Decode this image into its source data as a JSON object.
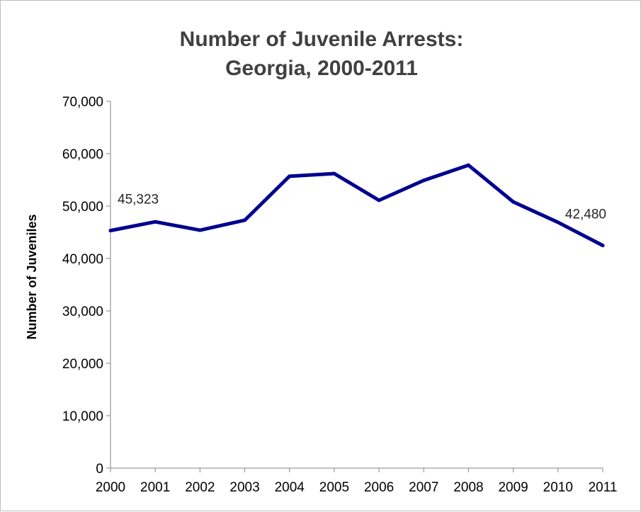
{
  "chart_data": {
    "type": "line",
    "title_lines": [
      "Number of Juvenile Arrests:",
      "Georgia, 2000-2011"
    ],
    "xlabel": "",
    "ylabel": "Number of Juveniles",
    "categories": [
      "2000",
      "2001",
      "2002",
      "2003",
      "2004",
      "2005",
      "2006",
      "2007",
      "2008",
      "2009",
      "2010",
      "2011"
    ],
    "series": [
      {
        "values": [
          45323,
          47000,
          45400,
          47300,
          55700,
          56200,
          51100,
          54900,
          57800,
          50800,
          46900,
          42480
        ],
        "color": "#000090"
      }
    ],
    "ylim": [
      0,
      70000
    ],
    "yticks": [
      0,
      10000,
      20000,
      30000,
      40000,
      50000,
      60000,
      70000
    ],
    "ytick_labels": [
      "0",
      "10,000",
      "20,000",
      "30,000",
      "40,000",
      "50,000",
      "60,000",
      "70,000"
    ],
    "data_labels": [
      {
        "index": 0,
        "text": "45,323"
      },
      {
        "index": 11,
        "text": "42,480"
      }
    ],
    "grid": false,
    "legend": "none"
  }
}
